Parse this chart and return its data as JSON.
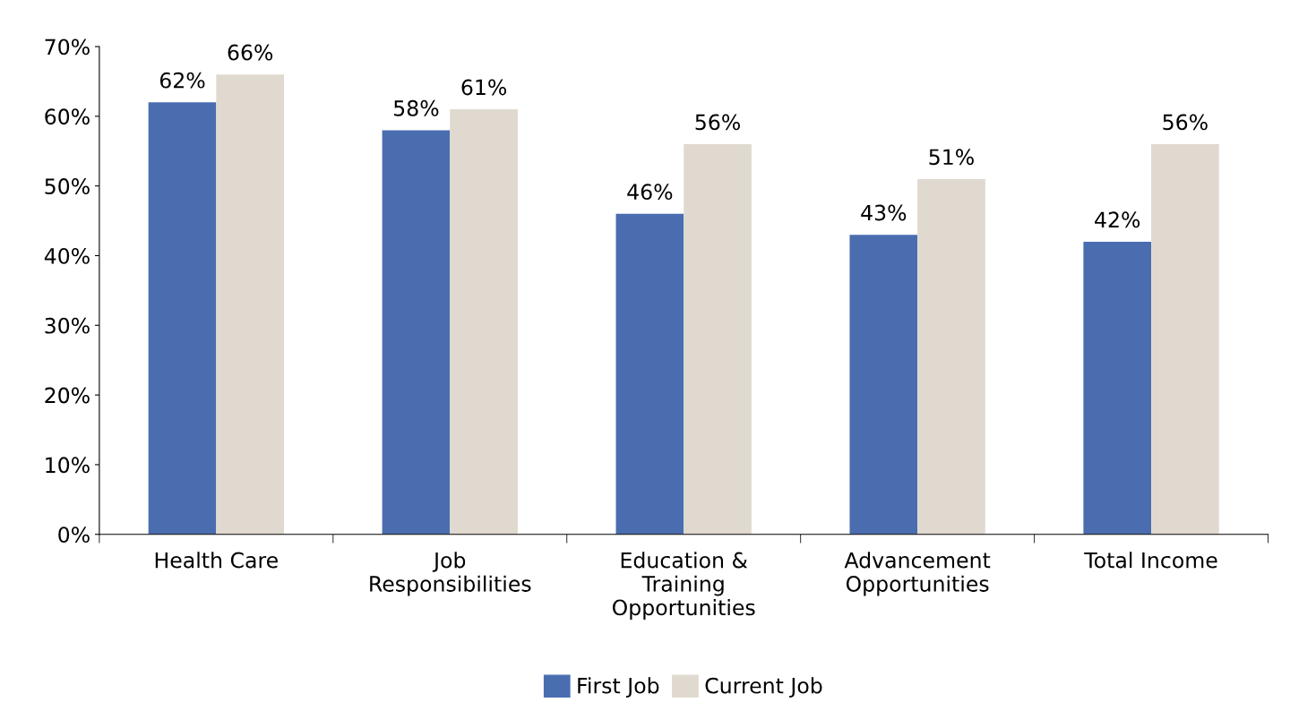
{
  "chart_data": {
    "type": "bar",
    "categories": [
      "Health Care",
      "Job\nResponsibilities",
      "Education &\nTraining\nOpportunities",
      "Advancement\nOpportunities",
      "Total Income"
    ],
    "series": [
      {
        "name": "First Job",
        "color": "#4a6db0",
        "values": [
          62,
          58,
          46,
          43,
          42
        ],
        "value_labels": [
          "62%",
          "58%",
          "46%",
          "43%",
          "42%"
        ]
      },
      {
        "name": "Current Job",
        "color": "#e0d9cf",
        "values": [
          66,
          61,
          56,
          51,
          56
        ],
        "value_labels": [
          "66%",
          "61%",
          "56%",
          "51%",
          "56%"
        ]
      }
    ],
    "ylim": [
      0,
      70
    ],
    "yticks": [
      {
        "value": 0,
        "label": "0%"
      },
      {
        "value": 10,
        "label": "10%"
      },
      {
        "value": 20,
        "label": "20%"
      },
      {
        "value": 30,
        "label": "30%"
      },
      {
        "value": 40,
        "label": "40%"
      },
      {
        "value": 50,
        "label": "50%"
      },
      {
        "value": 60,
        "label": "60%"
      },
      {
        "value": 70,
        "label": "70%"
      }
    ],
    "grid": false,
    "legend": "bottom"
  }
}
